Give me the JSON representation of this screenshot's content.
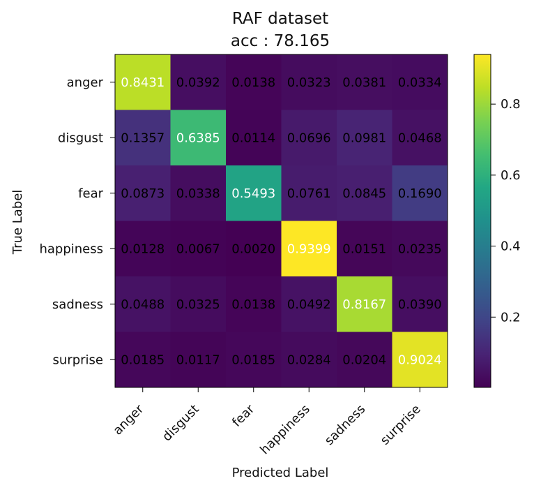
{
  "chart_data": {
    "type": "heatmap",
    "title_lines": [
      "RAF dataset",
      "acc : 78.165"
    ],
    "xlabel": "Predicted Label",
    "ylabel": "True Label",
    "x_categories": [
      "anger",
      "disgust",
      "fear",
      "happiness",
      "sadness",
      "surprise"
    ],
    "y_categories": [
      "anger",
      "disgust",
      "fear",
      "happiness",
      "sadness",
      "surprise"
    ],
    "values": [
      [
        0.8431,
        0.0392,
        0.0138,
        0.0323,
        0.0381,
        0.0334
      ],
      [
        0.1357,
        0.6385,
        0.0114,
        0.0696,
        0.0981,
        0.0468
      ],
      [
        0.0873,
        0.0338,
        0.5493,
        0.0761,
        0.0845,
        0.169
      ],
      [
        0.0128,
        0.0067,
        0.002,
        0.9399,
        0.0151,
        0.0235
      ],
      [
        0.0488,
        0.0325,
        0.0138,
        0.0492,
        0.8167,
        0.039
      ],
      [
        0.0185,
        0.0117,
        0.0185,
        0.0284,
        0.0204,
        0.9024
      ]
    ],
    "value_labels": [
      [
        "0.8431",
        "0.0392",
        "0.0138",
        "0.0323",
        "0.0381",
        "0.0334"
      ],
      [
        "0.1357",
        "0.6385",
        "0.0114",
        "0.0696",
        "0.0981",
        "0.0468"
      ],
      [
        "0.0873",
        "0.0338",
        "0.5493",
        "0.0761",
        "0.0845",
        "0.1690"
      ],
      [
        "0.0128",
        "0.0067",
        "0.0020",
        "0.9399",
        "0.0151",
        "0.0235"
      ],
      [
        "0.0488",
        "0.0325",
        "0.0138",
        "0.0492",
        "0.8167",
        "0.0390"
      ],
      [
        "0.0185",
        "0.0117",
        "0.0185",
        "0.0284",
        "0.0204",
        "0.9024"
      ]
    ],
    "colorbar": {
      "min": 0.002,
      "max": 0.9399,
      "ticks": [
        0.2,
        0.4,
        0.6,
        0.8
      ],
      "tick_labels": [
        "0.2",
        "0.4",
        "0.6",
        "0.8"
      ],
      "colormap": "viridis"
    },
    "label_colors": {
      "dark_text": "#000000",
      "light_text": "#ffffff"
    }
  }
}
